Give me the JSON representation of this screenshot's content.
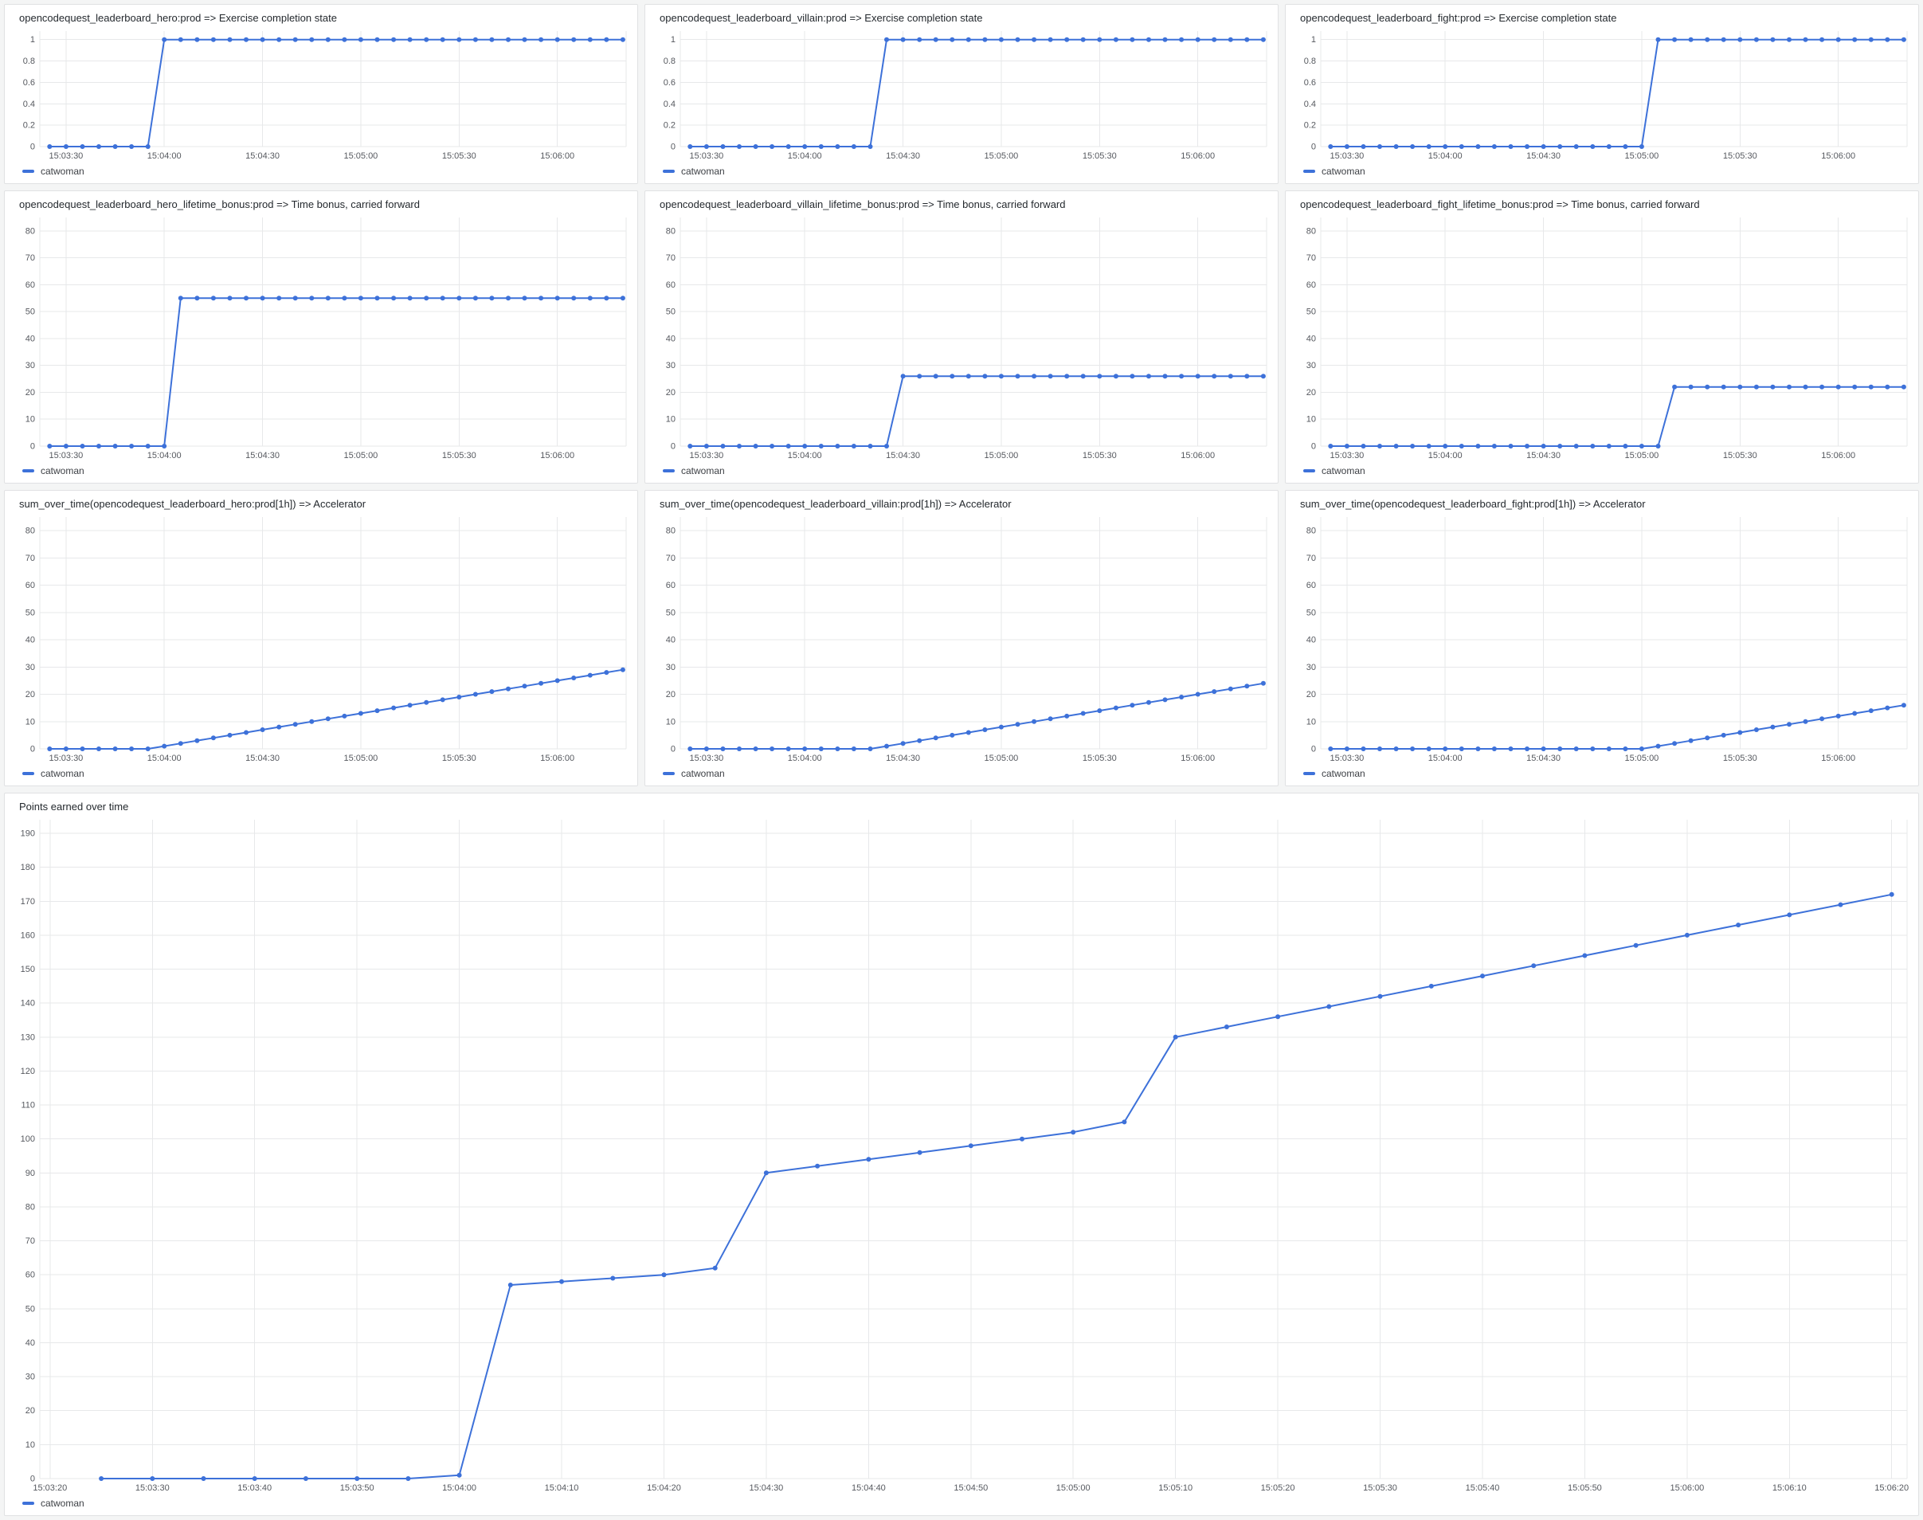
{
  "dashboard": {
    "series_label": "catwoman",
    "accent": "#3D71D9",
    "background": "#f4f5f5",
    "panel_background": "#ffffff"
  },
  "shared": {
    "x_start_time": "15:03:20",
    "x": [
      5,
      10,
      15,
      20,
      25,
      30,
      35,
      40,
      45,
      50,
      55,
      60,
      65,
      70,
      75,
      80,
      85,
      90,
      95,
      100,
      105,
      110,
      115,
      120,
      125,
      130,
      135,
      140,
      145,
      150,
      155,
      160,
      165,
      170,
      175,
      180
    ],
    "xticks": {
      "small": {
        "t": [
          10,
          40,
          70,
          100,
          130,
          160
        ],
        "labels": [
          "15:03:30",
          "15:04:00",
          "15:04:30",
          "15:05:00",
          "15:05:30",
          "15:06:00"
        ]
      },
      "big": {
        "t": [
          0,
          10,
          20,
          30,
          40,
          50,
          60,
          70,
          80,
          90,
          100,
          110,
          120,
          130,
          140,
          150,
          160,
          170,
          180
        ],
        "labels": [
          "15:03:20",
          "15:03:30",
          "15:03:40",
          "15:03:50",
          "15:04:00",
          "15:04:10",
          "15:04:20",
          "15:04:30",
          "15:04:40",
          "15:04:50",
          "15:05:00",
          "15:05:10",
          "15:05:20",
          "15:05:30",
          "15:05:40",
          "15:05:50",
          "15:06:00",
          "15:06:10",
          "15:06:20"
        ]
      }
    },
    "yticks": {
      "unit": [
        0,
        0.2,
        0.4,
        0.6,
        0.8,
        1
      ],
      "y80": [
        0,
        10,
        20,
        30,
        40,
        50,
        60,
        70,
        80
      ],
      "y190": [
        0,
        10,
        20,
        30,
        40,
        50,
        60,
        70,
        80,
        90,
        100,
        110,
        120,
        130,
        140,
        150,
        160,
        170,
        180,
        190
      ]
    }
  },
  "chart_data": {
    "hero_completion": {
      "type": "line",
      "title": "opencodequest_leaderboard_hero:prod => Exercise completion state",
      "legend": "catwoman",
      "xticks": "small",
      "yticks": "unit",
      "xlim": [
        2,
        181
      ],
      "ymax": 1.08,
      "values": [
        0,
        0,
        0,
        0,
        0,
        0,
        0,
        1,
        1,
        1,
        1,
        1,
        1,
        1,
        1,
        1,
        1,
        1,
        1,
        1,
        1,
        1,
        1,
        1,
        1,
        1,
        1,
        1,
        1,
        1,
        1,
        1,
        1,
        1,
        1,
        1
      ]
    },
    "villain_completion": {
      "type": "line",
      "title": "opencodequest_leaderboard_villain:prod => Exercise completion state",
      "legend": "catwoman",
      "xticks": "small",
      "yticks": "unit",
      "xlim": [
        2,
        181
      ],
      "ymax": 1.08,
      "values": [
        0,
        0,
        0,
        0,
        0,
        0,
        0,
        0,
        0,
        0,
        0,
        0,
        1,
        1,
        1,
        1,
        1,
        1,
        1,
        1,
        1,
        1,
        1,
        1,
        1,
        1,
        1,
        1,
        1,
        1,
        1,
        1,
        1,
        1,
        1,
        1
      ]
    },
    "fight_completion": {
      "type": "line",
      "title": "opencodequest_leaderboard_fight:prod => Exercise completion state",
      "legend": "catwoman",
      "xticks": "small",
      "yticks": "unit",
      "xlim": [
        2,
        181
      ],
      "ymax": 1.08,
      "values": [
        0,
        0,
        0,
        0,
        0,
        0,
        0,
        0,
        0,
        0,
        0,
        0,
        0,
        0,
        0,
        0,
        0,
        0,
        0,
        0,
        1,
        1,
        1,
        1,
        1,
        1,
        1,
        1,
        1,
        1,
        1,
        1,
        1,
        1,
        1,
        1
      ]
    },
    "hero_bonus": {
      "type": "line",
      "title": "opencodequest_leaderboard_hero_lifetime_bonus:prod => Time bonus, carried forward",
      "legend": "catwoman",
      "xticks": "small",
      "yticks": "y80",
      "xlim": [
        2,
        181
      ],
      "ymax": 85,
      "values": [
        0,
        0,
        0,
        0,
        0,
        0,
        0,
        0,
        55,
        55,
        55,
        55,
        55,
        55,
        55,
        55,
        55,
        55,
        55,
        55,
        55,
        55,
        55,
        55,
        55,
        55,
        55,
        55,
        55,
        55,
        55,
        55,
        55,
        55,
        55,
        55
      ]
    },
    "villain_bonus": {
      "type": "line",
      "title": "opencodequest_leaderboard_villain_lifetime_bonus:prod => Time bonus, carried forward",
      "legend": "catwoman",
      "xticks": "small",
      "yticks": "y80",
      "xlim": [
        2,
        181
      ],
      "ymax": 85,
      "values": [
        0,
        0,
        0,
        0,
        0,
        0,
        0,
        0,
        0,
        0,
        0,
        0,
        0,
        26,
        26,
        26,
        26,
        26,
        26,
        26,
        26,
        26,
        26,
        26,
        26,
        26,
        26,
        26,
        26,
        26,
        26,
        26,
        26,
        26,
        26,
        26
      ]
    },
    "fight_bonus": {
      "type": "line",
      "title": "opencodequest_leaderboard_fight_lifetime_bonus:prod => Time bonus, carried forward",
      "legend": "catwoman",
      "xticks": "small",
      "yticks": "y80",
      "xlim": [
        2,
        181
      ],
      "ymax": 85,
      "values": [
        0,
        0,
        0,
        0,
        0,
        0,
        0,
        0,
        0,
        0,
        0,
        0,
        0,
        0,
        0,
        0,
        0,
        0,
        0,
        0,
        0,
        22,
        22,
        22,
        22,
        22,
        22,
        22,
        22,
        22,
        22,
        22,
        22,
        22,
        22,
        22
      ]
    },
    "hero_accel": {
      "type": "line",
      "title": "sum_over_time(opencodequest_leaderboard_hero:prod[1h]) => Accelerator",
      "legend": "catwoman",
      "xticks": "small",
      "yticks": "y80",
      "xlim": [
        2,
        181
      ],
      "ymax": 85,
      "values": [
        0,
        0,
        0,
        0,
        0,
        0,
        0,
        1,
        2,
        3,
        4,
        5,
        6,
        7,
        8,
        9,
        10,
        11,
        12,
        13,
        14,
        15,
        16,
        17,
        18,
        19,
        20,
        21,
        22,
        23,
        24,
        25,
        26,
        27,
        28,
        29
      ]
    },
    "villain_accel": {
      "type": "line",
      "title": "sum_over_time(opencodequest_leaderboard_villain:prod[1h]) => Accelerator",
      "legend": "catwoman",
      "xticks": "small",
      "yticks": "y80",
      "xlim": [
        2,
        181
      ],
      "ymax": 85,
      "values": [
        0,
        0,
        0,
        0,
        0,
        0,
        0,
        0,
        0,
        0,
        0,
        0,
        1,
        2,
        3,
        4,
        5,
        6,
        7,
        8,
        9,
        10,
        11,
        12,
        13,
        14,
        15,
        16,
        17,
        18,
        19,
        20,
        21,
        22,
        23,
        24
      ]
    },
    "fight_accel": {
      "type": "line",
      "title": "sum_over_time(opencodequest_leaderboard_fight:prod[1h]) => Accelerator",
      "legend": "catwoman",
      "xticks": "small",
      "yticks": "y80",
      "xlim": [
        2,
        181
      ],
      "ymax": 85,
      "values": [
        0,
        0,
        0,
        0,
        0,
        0,
        0,
        0,
        0,
        0,
        0,
        0,
        0,
        0,
        0,
        0,
        0,
        0,
        0,
        0,
        1,
        2,
        3,
        4,
        5,
        6,
        7,
        8,
        9,
        10,
        11,
        12,
        13,
        14,
        15,
        16
      ]
    },
    "total_points": {
      "type": "line",
      "title": "Points earned over time",
      "legend": "catwoman",
      "xticks": "big",
      "yticks": "y190",
      "xlim": [
        -1,
        181.5
      ],
      "ymax": 194,
      "values": [
        0,
        0,
        0,
        0,
        0,
        0,
        0,
        1,
        57,
        58,
        59,
        60,
        62,
        90,
        92,
        94,
        96,
        98,
        100,
        102,
        105,
        130,
        133,
        136,
        139,
        142,
        145,
        148,
        151,
        154,
        157,
        160,
        163,
        166,
        169,
        172
      ]
    }
  }
}
